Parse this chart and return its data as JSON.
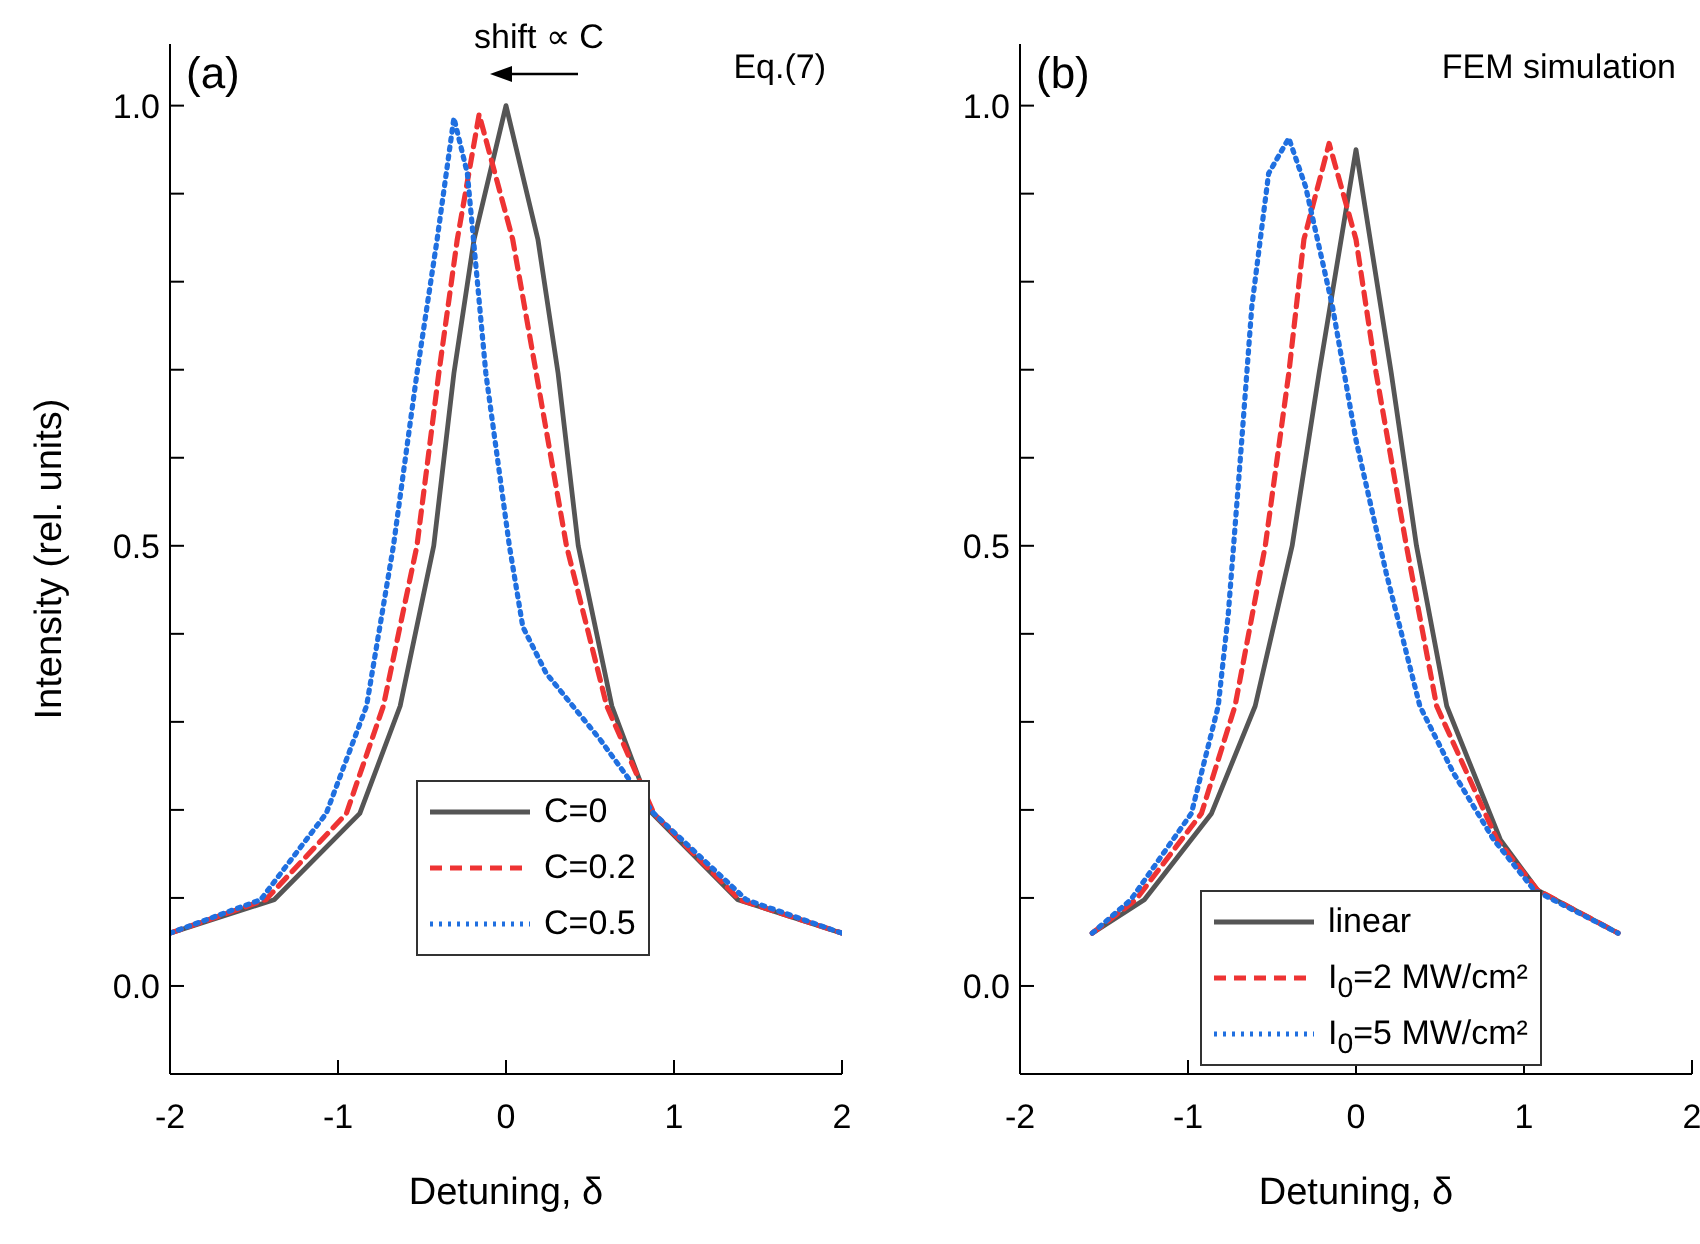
{
  "chart_data": [
    {
      "type": "line",
      "xlabel": "Detuning, δ",
      "ylabel": "Intensity (rel. units)",
      "annotations": [
        "(a)",
        "shift ∝ C",
        "Eq.(7)"
      ],
      "xlim": [
        -2,
        2
      ],
      "xticks": [
        -2,
        -1,
        0,
        1,
        2
      ],
      "ylim": [
        -0.1,
        1.07
      ],
      "yticks": [
        {
          "value": 0,
          "label": "0.0"
        },
        {
          "value": 0.1,
          "label": null
        },
        {
          "value": 0.2,
          "label": null
        },
        {
          "value": 0.3,
          "label": null
        },
        {
          "value": 0.4,
          "label": null
        },
        {
          "value": 0.5,
          "label": "0.5"
        },
        {
          "value": 0.6,
          "label": null
        },
        {
          "value": 0.7,
          "label": null
        },
        {
          "value": 0.8,
          "label": null
        },
        {
          "value": 0.9,
          "label": null
        },
        {
          "value": 1.0,
          "label": "1.0"
        }
      ],
      "legend": "bottom",
      "marker": "none",
      "grid": false,
      "series": [
        {
          "name": "C=0",
          "color": "#555555",
          "line_style": "solid",
          "x": [
            -2,
            -1.38,
            -0.87,
            -0.63,
            -0.43,
            -0.31,
            -0.19,
            0,
            0.19,
            0.31,
            0.43,
            0.63,
            0.87,
            1.38,
            2
          ],
          "values": [
            0.06,
            0.098,
            0.196,
            0.318,
            0.5,
            0.696,
            0.848,
            1.0,
            0.848,
            0.696,
            0.5,
            0.318,
            0.196,
            0.098,
            0.06
          ]
        },
        {
          "name": "C=0.2",
          "color": "#ee3333",
          "line_style": "dashed",
          "x": [
            -2,
            -1.43,
            -0.95,
            -0.73,
            -0.53,
            -0.4,
            -0.29,
            -0.16,
            0.04,
            0.18,
            0.36,
            0.6,
            0.88,
            1.39,
            2
          ],
          "values": [
            0.06,
            0.098,
            0.196,
            0.318,
            0.5,
            0.696,
            0.848,
            0.99,
            0.848,
            0.696,
            0.5,
            0.318,
            0.196,
            0.098,
            0.06
          ]
        },
        {
          "name": "C=0.5",
          "color": "#1f6fe0",
          "line_style": "dotted",
          "x": [
            -2,
            -1.46,
            -1.07,
            -0.83,
            -0.67,
            -0.53,
            -0.41,
            -0.31,
            -0.23,
            -0.12,
            0.02,
            0.1,
            0.24,
            0.56,
            0.88,
            1.43,
            2
          ],
          "values": [
            0.06,
            0.098,
            0.196,
            0.318,
            0.5,
            0.696,
            0.848,
            0.986,
            0.923,
            0.696,
            0.5,
            0.408,
            0.355,
            0.28,
            0.196,
            0.098,
            0.06
          ]
        }
      ]
    },
    {
      "type": "line",
      "xlabel": "Detuning, δ",
      "annotations": [
        "(b)",
        "FEM simulation"
      ],
      "xlim": [
        -2,
        2
      ],
      "xticks": [
        -2,
        -1,
        0,
        1,
        2
      ],
      "ylim": [
        -0.1,
        1.07
      ],
      "yticks": [
        {
          "value": 0,
          "label": "0.0"
        },
        {
          "value": 0.1,
          "label": null
        },
        {
          "value": 0.2,
          "label": null
        },
        {
          "value": 0.3,
          "label": null
        },
        {
          "value": 0.4,
          "label": null
        },
        {
          "value": 0.5,
          "label": "0.5"
        },
        {
          "value": 0.6,
          "label": null
        },
        {
          "value": 0.7,
          "label": null
        },
        {
          "value": 0.8,
          "label": null
        },
        {
          "value": 0.9,
          "label": null
        },
        {
          "value": 1.0,
          "label": "1.0"
        }
      ],
      "legend": "bottom",
      "marker": "none",
      "grid": false,
      "series": [
        {
          "name": "linear",
          "color": "#555555",
          "line_style": "solid",
          "x": [
            -1.57,
            -1.26,
            -0.86,
            -0.6,
            -0.38,
            -0.22,
            0,
            0.21,
            0.36,
            0.54,
            0.7,
            0.86,
            1.08,
            1.56
          ],
          "values": [
            0.06,
            0.098,
            0.196,
            0.318,
            0.5,
            0.696,
            0.95,
            0.696,
            0.5,
            0.318,
            0.242,
            0.166,
            0.109,
            0.06
          ]
        },
        {
          "name": "I$_{0}$=2 MW/cm²",
          "color": "#ee3333",
          "line_style": "dashed",
          "x": [
            -1.57,
            -1.31,
            -0.92,
            -0.72,
            -0.54,
            -0.4,
            -0.31,
            -0.16,
            0,
            0.12,
            0.3,
            0.48,
            0.66,
            0.84,
            1.08,
            1.56
          ],
          "values": [
            0.06,
            0.098,
            0.196,
            0.318,
            0.5,
            0.696,
            0.848,
            0.957,
            0.848,
            0.696,
            0.5,
            0.318,
            0.242,
            0.166,
            0.109,
            0.06
          ]
        },
        {
          "name": "I$_{0}$=5 MW/cm²",
          "color": "#1f6fe0",
          "line_style": "dotted",
          "x": [
            -1.57,
            -1.34,
            -0.98,
            -0.82,
            -0.76,
            -0.68,
            -0.62,
            -0.52,
            -0.4,
            -0.3,
            -0.14,
            0,
            0.18,
            0.38,
            0.58,
            0.82,
            1.06,
            1.56
          ],
          "values": [
            0.06,
            0.098,
            0.196,
            0.318,
            0.423,
            0.62,
            0.772,
            0.923,
            0.963,
            0.908,
            0.772,
            0.62,
            0.469,
            0.318,
            0.242,
            0.166,
            0.109,
            0.06
          ]
        }
      ]
    }
  ]
}
